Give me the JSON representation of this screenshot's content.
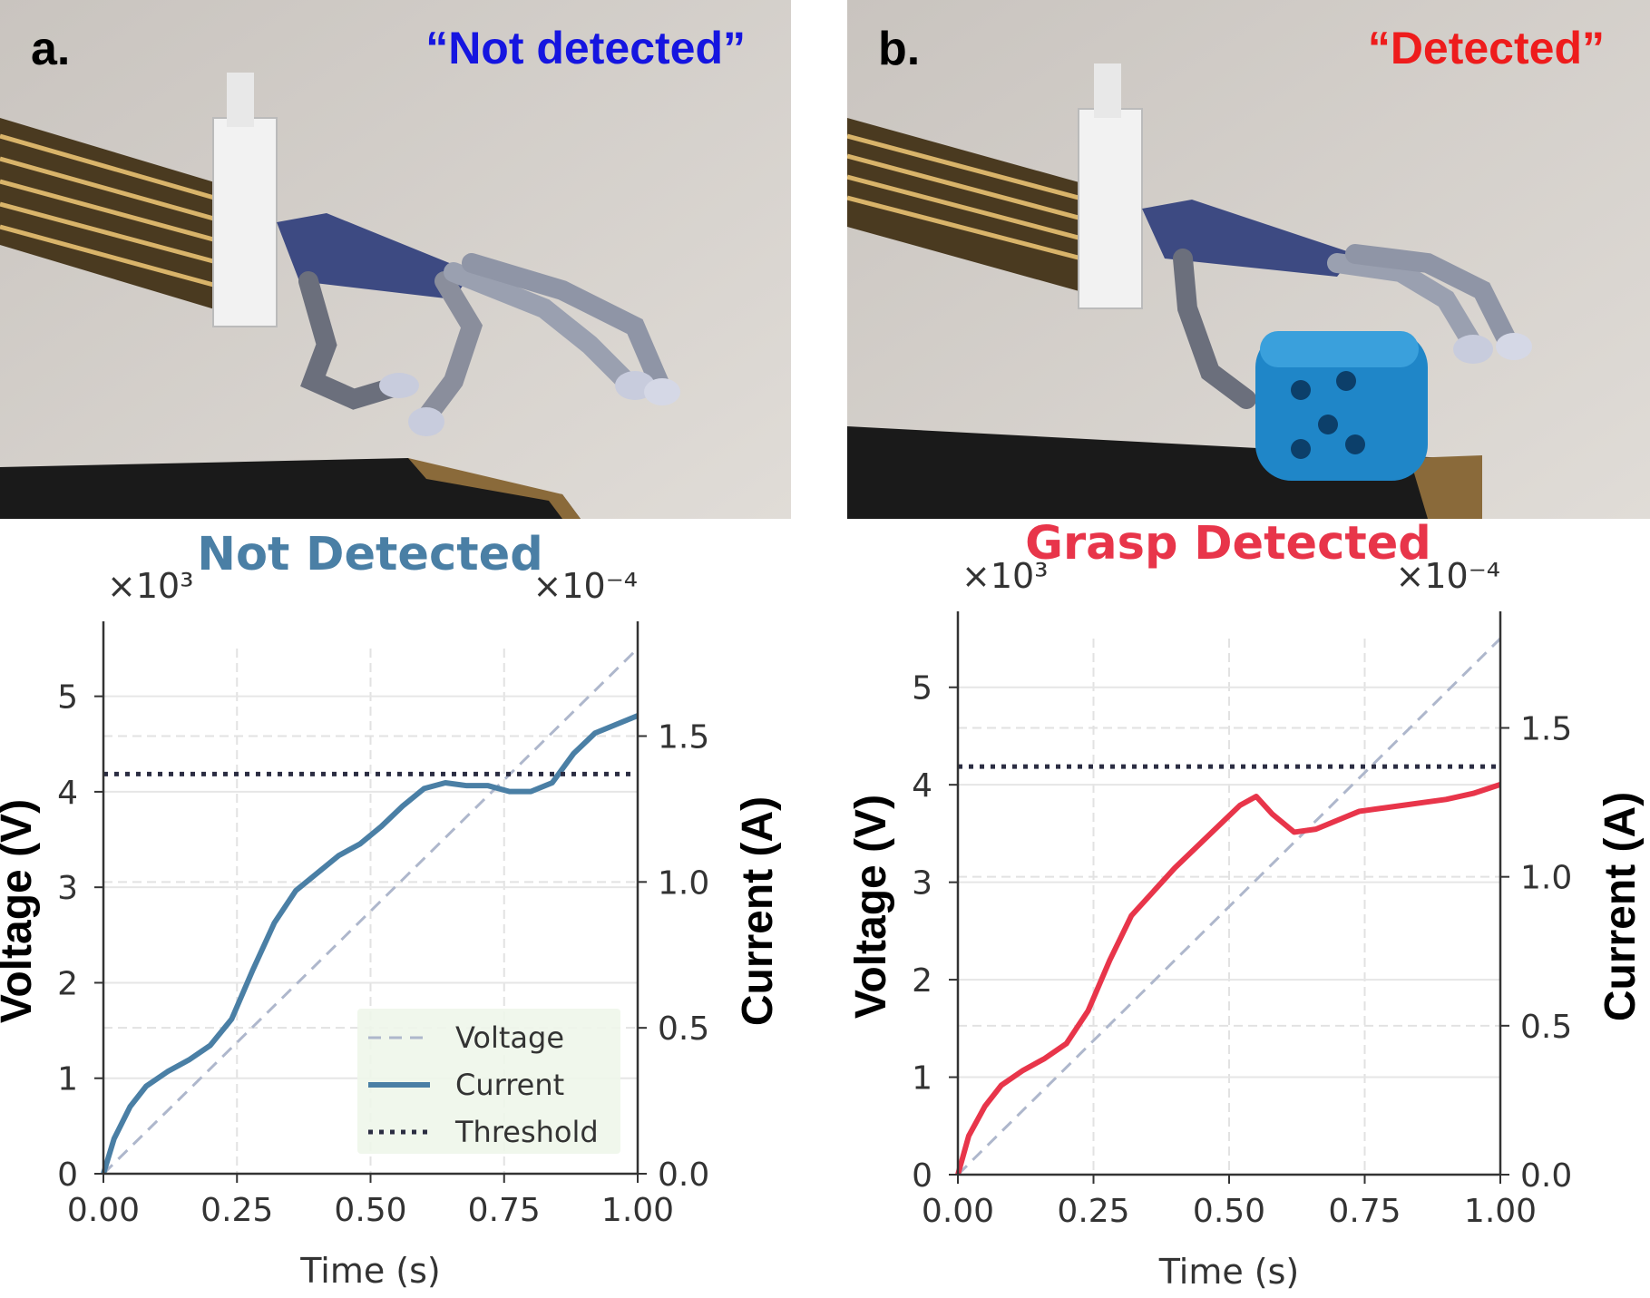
{
  "panels": [
    {
      "letter": "a.",
      "caption": "“Not detected”",
      "caption_color": "#1515e0",
      "object_present": false
    },
    {
      "letter": "b.",
      "caption": "“Detected”",
      "caption_color": "#ee1c1c",
      "object_present": true
    }
  ],
  "chart_data": [
    {
      "type": "line",
      "title": "Not Detected",
      "title_color": "#4a7fa5",
      "xlabel": "Time (s)",
      "ylabel": "Voltage (V)",
      "y2label": "Current (A)",
      "xlim": [
        0,
        1
      ],
      "ylim": [
        0,
        5.5
      ],
      "y2lim": [
        0,
        1.8
      ],
      "y_scale_label": "×10³",
      "y2_scale_label": "×10⁻⁴",
      "xticks": [
        "0.00",
        "0.25",
        "0.50",
        "0.75",
        "1.00"
      ],
      "yticks": [
        "0",
        "1",
        "2",
        "3",
        "4",
        "5"
      ],
      "y2ticks": [
        "0.0",
        "0.5",
        "1.0",
        "1.5"
      ],
      "threshold": 1.37,
      "grid": true,
      "legend": {
        "position": "bottom-right",
        "entries": [
          "Voltage",
          "Current",
          "Threshold"
        ]
      },
      "series": [
        {
          "name": "Voltage",
          "axis": "left",
          "style": "dashed",
          "color": "#aeb7cc",
          "x": [
            0,
            1
          ],
          "y": [
            0,
            5.5
          ]
        },
        {
          "name": "Current",
          "axis": "right",
          "style": "solid",
          "color": "#4a7fa5",
          "x": [
            0,
            0.02,
            0.05,
            0.08,
            0.12,
            0.16,
            0.2,
            0.24,
            0.28,
            0.32,
            0.36,
            0.4,
            0.44,
            0.48,
            0.52,
            0.56,
            0.6,
            0.64,
            0.68,
            0.72,
            0.76,
            0.8,
            0.84,
            0.88,
            0.92,
            0.96,
            1.0
          ],
          "y": [
            0.0,
            0.12,
            0.23,
            0.3,
            0.35,
            0.39,
            0.44,
            0.53,
            0.7,
            0.86,
            0.97,
            1.03,
            1.09,
            1.13,
            1.19,
            1.26,
            1.32,
            1.34,
            1.33,
            1.33,
            1.31,
            1.31,
            1.34,
            1.44,
            1.51,
            1.54,
            1.57
          ]
        },
        {
          "name": "Threshold",
          "axis": "right",
          "style": "dotted",
          "color": "#2b2d42",
          "x": [
            0,
            1
          ],
          "y": [
            1.37,
            1.37
          ]
        }
      ]
    },
    {
      "type": "line",
      "title": "Grasp Detected",
      "title_color": "#e8354a",
      "xlabel": "Time (s)",
      "ylabel": "Voltage (V)",
      "y2label": "Current (A)",
      "xlim": [
        0,
        1
      ],
      "ylim": [
        0,
        5.5
      ],
      "y2lim": [
        0,
        1.8
      ],
      "y_scale_label": "×10³",
      "y2_scale_label": "×10⁻⁴",
      "xticks": [
        "0.00",
        "0.25",
        "0.50",
        "0.75",
        "1.00"
      ],
      "yticks": [
        "0",
        "1",
        "2",
        "3",
        "4",
        "5"
      ],
      "y2ticks": [
        "0.0",
        "0.5",
        "1.0",
        "1.5"
      ],
      "threshold": 1.37,
      "grid": true,
      "legend": null,
      "series": [
        {
          "name": "Voltage",
          "axis": "left",
          "style": "dashed",
          "color": "#aeb7cc",
          "x": [
            0,
            1
          ],
          "y": [
            0,
            5.5
          ]
        },
        {
          "name": "Current",
          "axis": "right",
          "style": "solid",
          "color": "#e8354a",
          "x": [
            0,
            0.02,
            0.05,
            0.08,
            0.12,
            0.16,
            0.2,
            0.24,
            0.28,
            0.32,
            0.36,
            0.4,
            0.44,
            0.48,
            0.52,
            0.55,
            0.58,
            0.62,
            0.66,
            0.7,
            0.74,
            0.78,
            0.82,
            0.86,
            0.9,
            0.95,
            1.0
          ],
          "y": [
            0.0,
            0.13,
            0.23,
            0.3,
            0.35,
            0.39,
            0.44,
            0.55,
            0.72,
            0.87,
            0.95,
            1.03,
            1.1,
            1.17,
            1.24,
            1.27,
            1.21,
            1.15,
            1.16,
            1.19,
            1.22,
            1.23,
            1.24,
            1.25,
            1.26,
            1.28,
            1.31
          ]
        },
        {
          "name": "Threshold",
          "axis": "right",
          "style": "dotted",
          "color": "#2b2d42",
          "x": [
            0,
            1
          ],
          "y": [
            1.37,
            1.37
          ]
        }
      ]
    }
  ]
}
